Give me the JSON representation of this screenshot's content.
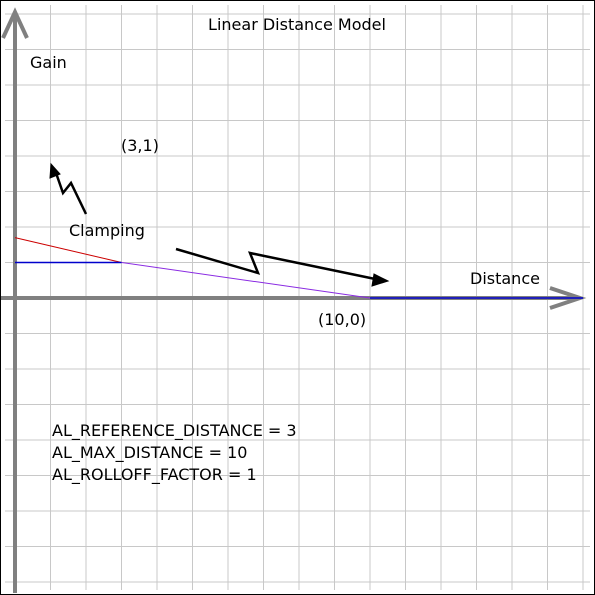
{
  "chart_data": {
    "type": "line",
    "title": "Linear Distance Model",
    "xlabel": "Distance",
    "ylabel": "Gain",
    "grid": true,
    "xlim": [
      0,
      16
    ],
    "ylim": [
      -7.5,
      8
    ],
    "series": [
      {
        "role": "unclamped",
        "color": "#cc0000",
        "x": [
          0,
          3
        ],
        "y": [
          1.7,
          1
        ]
      },
      {
        "role": "clamped",
        "color": "#0000cc",
        "x": [
          0,
          3
        ],
        "y": [
          1,
          1
        ]
      },
      {
        "role": "rolloff",
        "color": "#8a2be2",
        "x": [
          3,
          10
        ],
        "y": [
          1,
          0
        ]
      },
      {
        "role": "tail",
        "color": "#0000cc",
        "x": [
          10,
          16
        ],
        "y": [
          0,
          0
        ]
      }
    ],
    "points": [
      {
        "label": "(3,1)",
        "x": 3,
        "y": 1
      },
      {
        "label": "(10,0)",
        "x": 10,
        "y": 0
      }
    ],
    "annotations": {
      "clamping": "Clamping"
    },
    "parameters": [
      "AL_REFERENCE_DISTANCE = 3",
      "AL_MAX_DISTANCE = 10",
      "AL_ROLLOFF_FACTOR = 1"
    ]
  }
}
